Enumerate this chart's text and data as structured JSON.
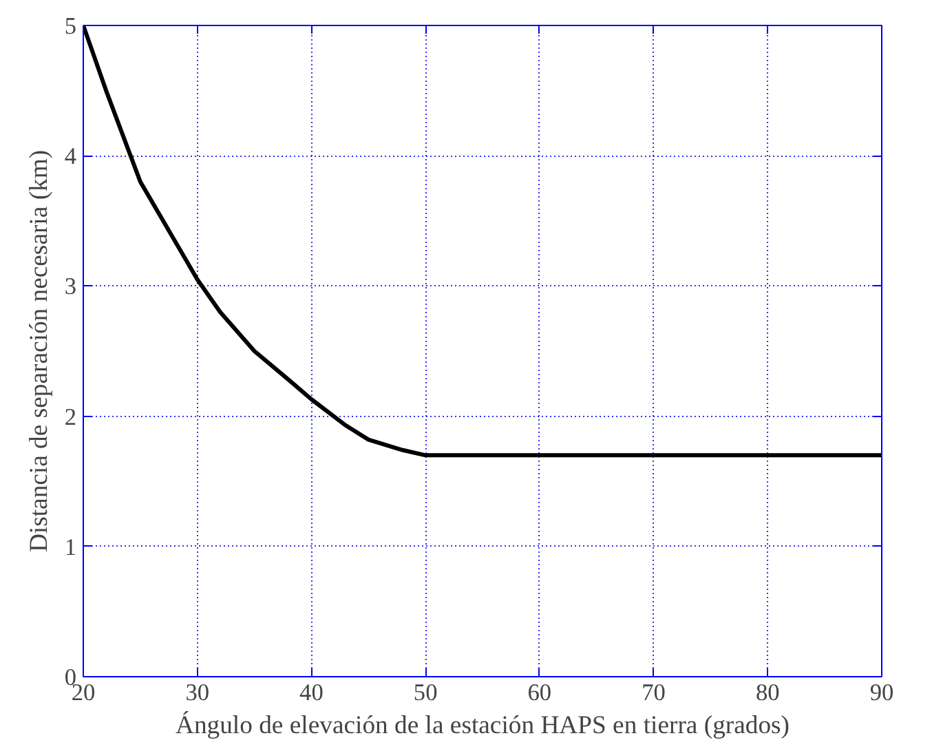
{
  "chart_data": {
    "type": "line",
    "xlabel": "Ángulo de elevación de la estación HAPS en tierra (grados)",
    "ylabel": "Distancia de separación necesaria (km)",
    "x": [
      20,
      22,
      25,
      27,
      30,
      32,
      35,
      38,
      40,
      43,
      45,
      48,
      50,
      60,
      70,
      80,
      90
    ],
    "series": [
      {
        "color": "#000000",
        "values": [
          5,
          4.5,
          3.8,
          3.5,
          3.05,
          2.8,
          2.5,
          2.28,
          2.13,
          1.93,
          1.82,
          1.74,
          1.7,
          1.7,
          1.7,
          1.7,
          1.7
        ]
      }
    ],
    "xlim": [
      20,
      90
    ],
    "ylim": [
      0,
      5
    ],
    "xticks": [
      20,
      30,
      40,
      50,
      60,
      70,
      80,
      90
    ],
    "yticks": [
      0,
      1,
      2,
      3,
      4,
      5
    ],
    "grid": true,
    "marker": "none",
    "line_style": "solid"
  }
}
